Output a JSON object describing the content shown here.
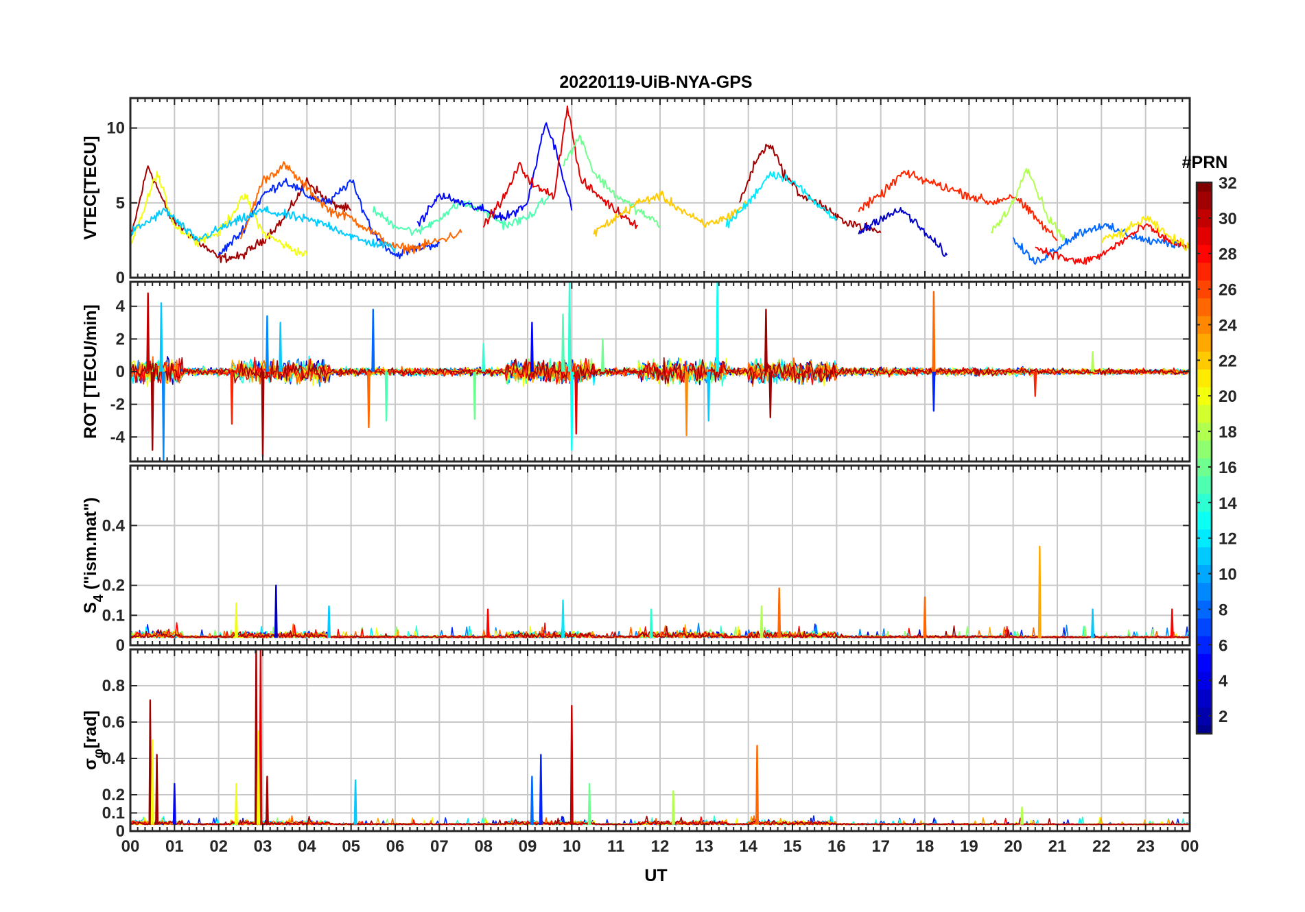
{
  "chart_data": {
    "type": "line",
    "title": "20220119-UiB-NYA-GPS",
    "xlabel": "UT",
    "x_tick_labels": [
      "00",
      "01",
      "02",
      "03",
      "04",
      "05",
      "06",
      "07",
      "08",
      "09",
      "10",
      "11",
      "12",
      "13",
      "14",
      "15",
      "16",
      "17",
      "18",
      "19",
      "20",
      "21",
      "22",
      "23",
      "00"
    ],
    "xlim": [
      0,
      24
    ],
    "grid": true,
    "colorbar": {
      "label": "#PRN",
      "range": [
        1,
        32
      ],
      "ticks": [
        2,
        4,
        6,
        8,
        10,
        12,
        14,
        16,
        18,
        20,
        22,
        24,
        26,
        28,
        30,
        32
      ],
      "colormap": "jet",
      "colors": [
        "#00008f",
        "#0000ff",
        "#0080ff",
        "#00ffff",
        "#80ff80",
        "#ffff00",
        "#ff8000",
        "#ff0000",
        "#800000"
      ]
    },
    "panels": [
      {
        "ylabel": "VTEC[TECU]",
        "ylim": [
          0,
          12
        ],
        "yticks": [
          0,
          5,
          10
        ],
        "ytick_labels": [
          "0",
          "5",
          "10"
        ],
        "series": [
          {
            "prn": 31,
            "x": [
              0,
              0.4,
              0.9,
              1.5,
              2.0,
              2.5,
              3.0,
              3.5,
              4.0,
              4.5,
              5.0
            ],
            "y": [
              2.5,
              7.5,
              4.0,
              2.5,
              1.3,
              1.4,
              2.5,
              4.0,
              6.5,
              5.0,
              4.5
            ]
          },
          {
            "prn": 20,
            "x": [
              0,
              0.6,
              1.0,
              1.5,
              2.0,
              2.6,
              3.0,
              3.6,
              4.0
            ],
            "y": [
              2.0,
              7.0,
              3.5,
              2.5,
              3.0,
              5.5,
              3.0,
              2.0,
              1.5
            ]
          },
          {
            "prn": 6,
            "x": [
              2.0,
              2.5,
              3.0,
              3.5,
              4.0,
              4.5,
              5.0,
              5.5,
              6.0,
              6.5,
              7.0
            ],
            "y": [
              1.5,
              3.0,
              5.5,
              6.5,
              5.5,
              5.0,
              6.5,
              3.0,
              1.5,
              2.0,
              2.3
            ]
          },
          {
            "prn": 25,
            "x": [
              2.5,
              3.0,
              3.5,
              4.0,
              4.5,
              5.0,
              5.5,
              6.0,
              6.5,
              7.0,
              7.5
            ],
            "y": [
              2.5,
              6.5,
              7.5,
              6.0,
              4.5,
              4.0,
              3.0,
              2.0,
              2.0,
              2.5,
              3.0
            ]
          },
          {
            "prn": 11,
            "x": [
              0,
              0.8,
              1.5,
              2.2,
              3.0,
              3.8,
              4.5,
              5.2,
              6.0
            ],
            "y": [
              3.0,
              4.5,
              2.5,
              3.5,
              4.5,
              4.0,
              3.5,
              2.5,
              2.0
            ]
          },
          {
            "prn": 15,
            "x": [
              5.5,
              6.0,
              6.5,
              7.0,
              7.5,
              8.0,
              8.5,
              9.0,
              9.5
            ],
            "y": [
              4.5,
              3.5,
              3.0,
              4.0,
              5.0,
              4.5,
              3.5,
              4.0,
              5.5
            ]
          },
          {
            "prn": 5,
            "x": [
              6.5,
              7.0,
              7.5,
              8.0,
              8.5,
              9.0,
              9.4,
              9.7,
              10.0
            ],
            "y": [
              3.5,
              5.5,
              5.0,
              4.5,
              4.0,
              5.0,
              10.5,
              8.0,
              4.5
            ]
          },
          {
            "prn": 29,
            "x": [
              8.0,
              8.5,
              8.8,
              9.2,
              9.6,
              9.9,
              10.2,
              10.6,
              11.0,
              11.5
            ],
            "y": [
              3.5,
              5.5,
              7.5,
              6.0,
              5.5,
              11.5,
              6.5,
              5.5,
              4.5,
              3.5
            ]
          },
          {
            "prn": 16,
            "x": [
              9.8,
              10.2,
              10.5,
              11.0,
              11.5,
              12.0
            ],
            "y": [
              7.5,
              9.5,
              7.0,
              5.5,
              4.5,
              3.5
            ]
          },
          {
            "prn": 22,
            "x": [
              10.5,
              11.0,
              11.5,
              12.0,
              12.5,
              13.0,
              13.5,
              14.0
            ],
            "y": [
              3.0,
              4.0,
              5.0,
              5.5,
              4.5,
              3.5,
              4.0,
              5.0
            ]
          },
          {
            "prn": 31,
            "x": [
              13.8,
              14.2,
              14.5,
              14.8,
              15.2,
              15.6,
              16.0,
              16.5,
              17.0
            ],
            "y": [
              5.0,
              8.0,
              9.0,
              7.0,
              5.5,
              5.0,
              4.0,
              3.5,
              3.0
            ]
          },
          {
            "prn": 12,
            "x": [
              13.5,
              14.0,
              14.5,
              15.0,
              15.5,
              16.0
            ],
            "y": [
              3.5,
              5.0,
              7.0,
              6.5,
              5.0,
              4.0
            ]
          },
          {
            "prn": 27,
            "x": [
              16.5,
              17.0,
              17.5,
              18.0,
              18.5,
              19.0,
              19.5,
              20.0,
              20.5,
              21.0
            ],
            "y": [
              4.5,
              5.5,
              7.0,
              6.5,
              6.0,
              5.5,
              5.0,
              5.5,
              4.0,
              2.5
            ]
          },
          {
            "prn": 3,
            "x": [
              16.5,
              17.0,
              17.5,
              18.0,
              18.5
            ],
            "y": [
              3.0,
              4.0,
              4.5,
              3.0,
              1.5
            ]
          },
          {
            "prn": 18,
            "x": [
              19.5,
              20.0,
              20.3,
              20.8,
              21.2
            ],
            "y": [
              3.0,
              5.0,
              7.5,
              4.0,
              2.5
            ]
          },
          {
            "prn": 8,
            "x": [
              20.0,
              20.5,
              21.0,
              21.5,
              22.0,
              22.5,
              23.0,
              23.5,
              24.0
            ],
            "y": [
              2.5,
              1.0,
              2.0,
              3.0,
              3.5,
              3.0,
              2.5,
              2.3,
              2.2
            ]
          },
          {
            "prn": 28,
            "x": [
              20.5,
              21.0,
              21.5,
              22.0,
              22.5,
              23.0,
              23.5,
              24.0
            ],
            "y": [
              2.0,
              1.5,
              1.0,
              1.5,
              2.5,
              3.5,
              2.5,
              2.0
            ]
          },
          {
            "prn": 21,
            "x": [
              22.0,
              22.5,
              23.0,
              23.5,
              24.0
            ],
            "y": [
              2.5,
              3.0,
              4.0,
              2.8,
              2.0
            ]
          }
        ]
      },
      {
        "ylabel": "ROT [TECU/min]",
        "ylim": [
          -5.5,
          5.5
        ],
        "yticks": [
          -4,
          -2,
          0,
          2,
          4
        ],
        "ytick_labels": [
          "-4",
          "-2",
          "0",
          "2",
          "4"
        ],
        "spikes": [
          {
            "prn": 30,
            "x": 0.4,
            "y": 4.8
          },
          {
            "prn": 31,
            "x": 0.5,
            "y": -4.8
          },
          {
            "prn": 11,
            "x": 0.7,
            "y": 4.2
          },
          {
            "prn": 9,
            "x": 0.75,
            "y": -5.4
          },
          {
            "prn": 27,
            "x": 2.3,
            "y": -3.2
          },
          {
            "prn": 31,
            "x": 3.0,
            "y": -5.2
          },
          {
            "prn": 9,
            "x": 3.1,
            "y": 3.4
          },
          {
            "prn": 11,
            "x": 3.4,
            "y": 3.0
          },
          {
            "prn": 8,
            "x": 5.5,
            "y": 3.8
          },
          {
            "prn": 25,
            "x": 5.4,
            "y": -3.4
          },
          {
            "prn": 15,
            "x": 5.8,
            "y": -3.0
          },
          {
            "prn": 16,
            "x": 7.8,
            "y": -2.9
          },
          {
            "prn": 14,
            "x": 8.0,
            "y": 1.7
          },
          {
            "prn": 5,
            "x": 9.1,
            "y": 3.0
          },
          {
            "prn": 15,
            "x": 9.8,
            "y": 3.5
          },
          {
            "prn": 14,
            "x": 9.95,
            "y": 5.5
          },
          {
            "prn": 13,
            "x": 10.0,
            "y": -4.8
          },
          {
            "prn": 29,
            "x": 10.1,
            "y": -3.8
          },
          {
            "prn": 16,
            "x": 10.7,
            "y": 2.0
          },
          {
            "prn": 24,
            "x": 12.6,
            "y": -3.9
          },
          {
            "prn": 13,
            "x": 13.3,
            "y": 5.5
          },
          {
            "prn": 11,
            "x": 13.1,
            "y": -3.0
          },
          {
            "prn": 31,
            "x": 14.4,
            "y": 3.8
          },
          {
            "prn": 31,
            "x": 14.5,
            "y": -2.8
          },
          {
            "prn": 25,
            "x": 18.2,
            "y": 4.9
          },
          {
            "prn": 6,
            "x": 18.2,
            "y": -2.4
          },
          {
            "prn": 27,
            "x": 20.5,
            "y": -1.5
          },
          {
            "prn": 18,
            "x": 21.8,
            "y": 1.2
          }
        ]
      },
      {
        "ylabel": "S4 (\"ism.mat\")",
        "ylabel_main": "S",
        "ylabel_sub": "4",
        "ylabel_rest": " (\"ism.mat\")",
        "ylim": [
          0,
          0.6
        ],
        "yticks": [
          0,
          0.1,
          0.2,
          0.4
        ],
        "ytick_labels": [
          "0",
          "0.1",
          "0.2",
          "0.4"
        ],
        "spikes": [
          {
            "prn": 20,
            "x": 2.4,
            "y": 0.14
          },
          {
            "prn": 3,
            "x": 3.3,
            "y": 0.2
          },
          {
            "prn": 11,
            "x": 4.5,
            "y": 0.13
          },
          {
            "prn": 28,
            "x": 8.1,
            "y": 0.12
          },
          {
            "prn": 12,
            "x": 9.8,
            "y": 0.15
          },
          {
            "prn": 14,
            "x": 11.8,
            "y": 0.12
          },
          {
            "prn": 25,
            "x": 14.7,
            "y": 0.19
          },
          {
            "prn": 18,
            "x": 14.3,
            "y": 0.13
          },
          {
            "prn": 25,
            "x": 18.0,
            "y": 0.16
          },
          {
            "prn": 23,
            "x": 20.6,
            "y": 0.33
          },
          {
            "prn": 11,
            "x": 21.8,
            "y": 0.12
          },
          {
            "prn": 28,
            "x": 23.6,
            "y": 0.12
          }
        ]
      },
      {
        "ylabel": "σφ[rad]",
        "ylabel_main": "σ",
        "ylabel_sub": "φ",
        "ylabel_rest": "[rad]",
        "ylim": [
          0,
          1.0
        ],
        "yticks": [
          0,
          0.1,
          0.2,
          0.4,
          0.6,
          0.8
        ],
        "ytick_labels": [
          "0",
          "0.1",
          "0.2",
          "0.4",
          "0.6",
          "0.8"
        ],
        "spikes": [
          {
            "prn": 31,
            "x": 0.45,
            "y": 0.72
          },
          {
            "prn": 20,
            "x": 0.5,
            "y": 0.5
          },
          {
            "prn": 31,
            "x": 0.6,
            "y": 0.42
          },
          {
            "prn": 5,
            "x": 1.0,
            "y": 0.26
          },
          {
            "prn": 20,
            "x": 2.4,
            "y": 0.26
          },
          {
            "prn": 31,
            "x": 2.85,
            "y": 1.0
          },
          {
            "prn": 29,
            "x": 2.95,
            "y": 1.0
          },
          {
            "prn": 20,
            "x": 2.9,
            "y": 0.55
          },
          {
            "prn": 31,
            "x": 3.1,
            "y": 0.3
          },
          {
            "prn": 11,
            "x": 5.1,
            "y": 0.28
          },
          {
            "prn": 6,
            "x": 9.3,
            "y": 0.42
          },
          {
            "prn": 8,
            "x": 9.1,
            "y": 0.3
          },
          {
            "prn": 30,
            "x": 10.0,
            "y": 0.69
          },
          {
            "prn": 16,
            "x": 10.4,
            "y": 0.26
          },
          {
            "prn": 18,
            "x": 12.3,
            "y": 0.22
          },
          {
            "prn": 25,
            "x": 14.2,
            "y": 0.47
          },
          {
            "prn": 18,
            "x": 20.2,
            "y": 0.13
          }
        ]
      }
    ]
  }
}
